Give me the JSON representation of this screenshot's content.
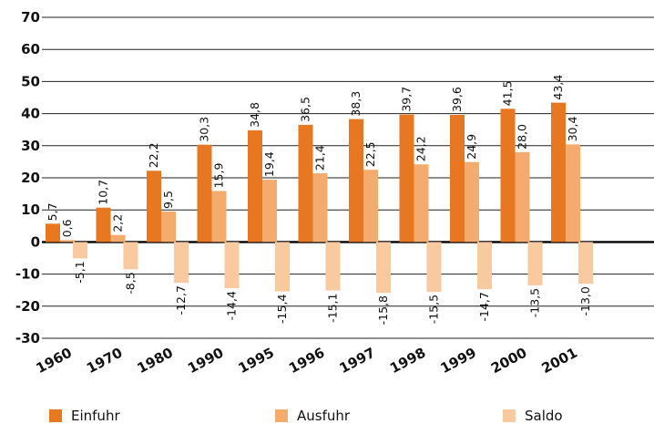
{
  "chart_data": {
    "type": "bar",
    "categories": [
      "1960",
      "1970",
      "1980",
      "1990",
      "1995",
      "1996",
      "1997",
      "1998",
      "1999",
      "2000",
      "2001"
    ],
    "series": [
      {
        "name": "Einfuhr",
        "color": "#e87722",
        "values": [
          5.7,
          10.7,
          22.2,
          30.3,
          34.8,
          36.5,
          38.3,
          39.7,
          39.6,
          41.5,
          43.4
        ],
        "labels": [
          "5,7",
          "10,7",
          "22,2",
          "30,3",
          "34,8",
          "36,5",
          "38,3",
          "39,7",
          "39,6",
          "41,5",
          "43,4"
        ]
      },
      {
        "name": "Ausfuhr",
        "color": "#f5ab6e",
        "values": [
          0.6,
          2.2,
          9.5,
          15.9,
          19.4,
          21.4,
          22.5,
          24.2,
          24.9,
          28.0,
          30.4
        ],
        "labels": [
          "0,6",
          "2,2",
          "9,5",
          "15,9",
          "19,4",
          "21,4",
          "22,5",
          "24,2",
          "24,9",
          "28,0",
          "30,4"
        ]
      },
      {
        "name": "Saldo",
        "color": "#f9c9a0",
        "values": [
          -5.1,
          -8.5,
          -12.7,
          -14.4,
          -15.4,
          -15.1,
          -15.8,
          -15.5,
          -14.7,
          -13.5,
          -13.0
        ],
        "labels": [
          "-5,1",
          "-8,5",
          "-12,7",
          "-14,4",
          "-15,4",
          "-15,1",
          "-15,8",
          "-15,5",
          "-14,7",
          "-13,5",
          "-13,0"
        ]
      }
    ],
    "ylim": [
      -30,
      70
    ],
    "yticks": [
      "-30",
      "-20",
      "-10",
      "0",
      "10",
      "20",
      "30",
      "40",
      "50",
      "60",
      "70"
    ],
    "grid": true,
    "legend": "bottom"
  }
}
